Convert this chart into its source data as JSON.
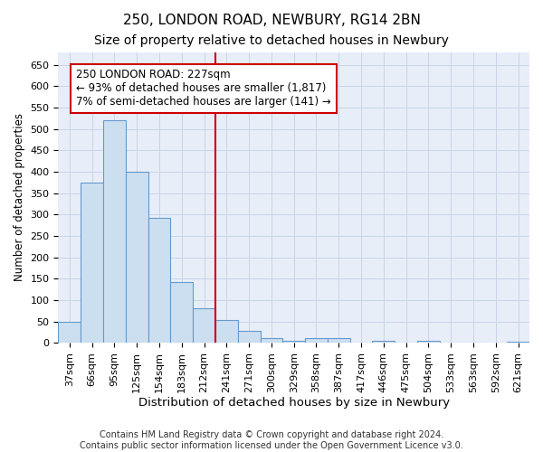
{
  "title": "250, LONDON ROAD, NEWBURY, RG14 2BN",
  "subtitle": "Size of property relative to detached houses in Newbury",
  "xlabel": "Distribution of detached houses by size in Newbury",
  "ylabel": "Number of detached properties",
  "categories": [
    "37sqm",
    "66sqm",
    "95sqm",
    "125sqm",
    "154sqm",
    "183sqm",
    "212sqm",
    "241sqm",
    "271sqm",
    "300sqm",
    "329sqm",
    "358sqm",
    "387sqm",
    "417sqm",
    "446sqm",
    "475sqm",
    "504sqm",
    "533sqm",
    "563sqm",
    "592sqm",
    "621sqm"
  ],
  "values": [
    50,
    375,
    520,
    400,
    292,
    142,
    80,
    53,
    28,
    10,
    5,
    11,
    11,
    0,
    4,
    0,
    4,
    0,
    0,
    0,
    3
  ],
  "bar_color": "#ccdff0",
  "bar_edge_color": "#6699cc",
  "vline_x": 6.5,
  "vline_color": "#cc0000",
  "annotation_text": "250 LONDON ROAD: 227sqm\n← 93% of detached houses are smaller (1,817)\n7% of semi-detached houses are larger (141) →",
  "annotation_box_color": "#ffffff",
  "annotation_box_edge_color": "#cc0000",
  "ylim": [
    0,
    680
  ],
  "yticks": [
    0,
    50,
    100,
    150,
    200,
    250,
    300,
    350,
    400,
    450,
    500,
    550,
    600,
    650
  ],
  "grid_color": "#c8d4e8",
  "background_color": "#e8eef8",
  "footer": "Contains HM Land Registry data © Crown copyright and database right 2024.\nContains public sector information licensed under the Open Government Licence v3.0.",
  "title_fontsize": 11,
  "subtitle_fontsize": 10,
  "xlabel_fontsize": 9.5,
  "ylabel_fontsize": 8.5,
  "tick_fontsize": 8,
  "annotation_fontsize": 8.5,
  "footer_fontsize": 7
}
